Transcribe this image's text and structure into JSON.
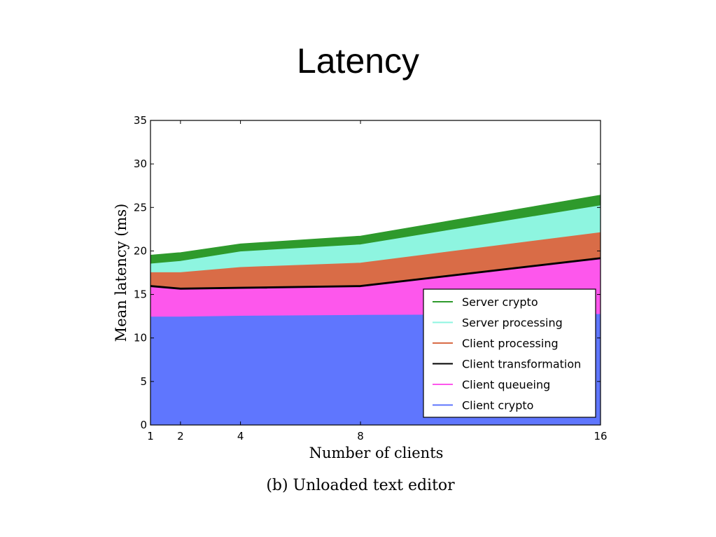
{
  "slide": {
    "title": "Latency"
  },
  "chart_data": {
    "type": "area",
    "stacked": true,
    "caption": "(b) Unloaded text editor",
    "xlabel": "Number of clients",
    "ylabel": "Mean latency (ms)",
    "x": [
      1,
      2,
      4,
      8,
      16
    ],
    "xticks": [
      1,
      2,
      4,
      8,
      16
    ],
    "xlim": [
      1,
      16
    ],
    "ylim": [
      0,
      35
    ],
    "yticks": [
      0,
      5,
      10,
      15,
      20,
      25,
      30,
      35
    ],
    "legend_position": "lower-right",
    "grid": false,
    "series": [
      {
        "name": "Client crypto",
        "color": "#5f76fe",
        "values": [
          12.4,
          12.4,
          12.5,
          12.6,
          12.7
        ]
      },
      {
        "name": "Client queueing",
        "color": "#fd57ec",
        "values": [
          3.4,
          3.1,
          3.1,
          3.2,
          6.3
        ]
      },
      {
        "name": "Client transformation",
        "color": "#000000",
        "values": [
          0.2,
          0.2,
          0.2,
          0.2,
          0.2
        ]
      },
      {
        "name": "Client processing",
        "color": "#d96c47",
        "values": [
          1.5,
          1.8,
          2.3,
          2.6,
          2.9
        ]
      },
      {
        "name": "Server processing",
        "color": "#8ef5e0",
        "values": [
          1.0,
          1.3,
          1.8,
          2.1,
          3.1
        ]
      },
      {
        "name": "Server crypto",
        "color": "#2e9a2c",
        "values": [
          1.0,
          1.0,
          0.9,
          1.0,
          1.2
        ]
      }
    ]
  }
}
